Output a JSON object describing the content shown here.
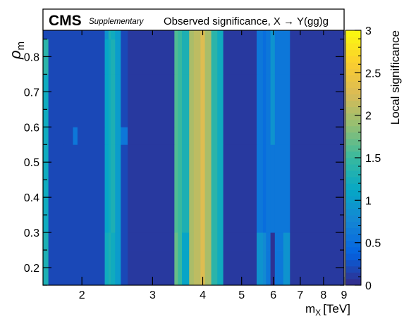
{
  "header": {
    "experiment": "CMS",
    "tag": "Supplementary",
    "title": "Observed significance, X → Y(gg)g"
  },
  "colors": {
    "palette": [
      "#352a87",
      "#0363e1",
      "#1485d4",
      "#06a7c6",
      "#38b99e",
      "#92bf73",
      "#d9ba56",
      "#fcce2e",
      "#f9fb0e"
    ]
  },
  "chart_data": {
    "type": "heatmap",
    "title": "Observed significance, X → Y(gg)g",
    "xlabel": "m",
    "xlabel_subscript": "X",
    "xlabel_unit": "[TeV]",
    "ylabel": "ρ",
    "ylabel_subscript": "m",
    "zlabel": "Local significance",
    "x_scale": "log",
    "xlim": [
      1.6,
      9.0
    ],
    "ylim": [
      0.15,
      0.875
    ],
    "zlim": [
      0,
      3
    ],
    "x_ticks": [
      2,
      3,
      4,
      5,
      6,
      7,
      8,
      9
    ],
    "y_ticks": [
      0.2,
      0.3,
      0.4,
      0.5,
      0.6,
      0.7,
      0.8
    ],
    "z_ticks": [
      0,
      0.5,
      1,
      1.5,
      2,
      2.5,
      3
    ],
    "x_edges": [
      1.6,
      1.65,
      1.8,
      1.9,
      1.95,
      2.28,
      2.33,
      2.36,
      2.42,
      2.5,
      2.6,
      3.4,
      3.47,
      3.55,
      3.7,
      3.8,
      3.95,
      4.05,
      4.2,
      4.35,
      4.5,
      5.45,
      5.65,
      5.75,
      5.9,
      6.05,
      6.35,
      6.6,
      9.0
    ],
    "y_edges": [
      0.15,
      0.25,
      0.3,
      0.55,
      0.6,
      0.75,
      0.85,
      0.875
    ],
    "z": [
      [
        1.3,
        0.2,
        0.2,
        0.2,
        0.2,
        1.2,
        1.3,
        1.2,
        1.0,
        0.2,
        0.1,
        1.7,
        1.5,
        1.1,
        2.0,
        2.1,
        2.3,
        2.0,
        1.4,
        1.2,
        0.1,
        0.9,
        0.8,
        0.6,
        0.05,
        0.6,
        0.9,
        0.1
      ],
      [
        1.3,
        0.2,
        0.2,
        0.2,
        0.2,
        1.2,
        1.3,
        1.2,
        1.0,
        0.2,
        0.1,
        1.7,
        1.5,
        1.1,
        2.0,
        2.1,
        2.3,
        2.0,
        1.4,
        1.2,
        0.1,
        0.9,
        0.8,
        0.6,
        0.05,
        0.6,
        0.9,
        0.1
      ],
      [
        1.2,
        0.2,
        0.2,
        0.2,
        0.2,
        1.1,
        1.2,
        1.3,
        1.0,
        0.2,
        0.1,
        1.6,
        1.5,
        1.3,
        2.0,
        2.1,
        2.3,
        2.0,
        1.4,
        1.2,
        0.1,
        0.6,
        0.5,
        0.6,
        0.6,
        0.6,
        0.6,
        0.1
      ],
      [
        1.2,
        0.2,
        0.2,
        0.6,
        0.2,
        1.1,
        1.2,
        1.3,
        1.0,
        0.6,
        0.1,
        1.6,
        1.5,
        1.3,
        2.0,
        2.1,
        2.3,
        2.0,
        1.4,
        1.2,
        0.1,
        0.6,
        0.5,
        0.6,
        0.9,
        0.6,
        0.6,
        0.1
      ],
      [
        1.2,
        0.2,
        0.2,
        0.2,
        0.2,
        1.1,
        1.2,
        1.3,
        1.0,
        0.2,
        0.1,
        1.6,
        1.5,
        1.3,
        2.0,
        2.1,
        2.3,
        2.0,
        1.4,
        1.2,
        0.1,
        0.6,
        0.5,
        0.6,
        0.9,
        0.6,
        0.6,
        0.1
      ],
      [
        1.4,
        0.2,
        0.2,
        0.2,
        0.2,
        1.1,
        1.2,
        1.3,
        1.0,
        0.2,
        0.1,
        1.6,
        1.5,
        1.3,
        2.0,
        2.1,
        2.3,
        2.0,
        1.4,
        1.2,
        0.1,
        0.6,
        0.5,
        0.6,
        0.9,
        0.6,
        0.6,
        0.1
      ],
      [
        0.2,
        0.2,
        0.2,
        0.2,
        0.2,
        0.9,
        1.3,
        1.2,
        1.0,
        0.2,
        0.1,
        1.6,
        1.5,
        1.3,
        2.0,
        2.1,
        2.3,
        2.0,
        1.4,
        1.2,
        0.1,
        0.6,
        0.5,
        0.6,
        0.9,
        0.6,
        0.6,
        0.1
      ]
    ]
  }
}
